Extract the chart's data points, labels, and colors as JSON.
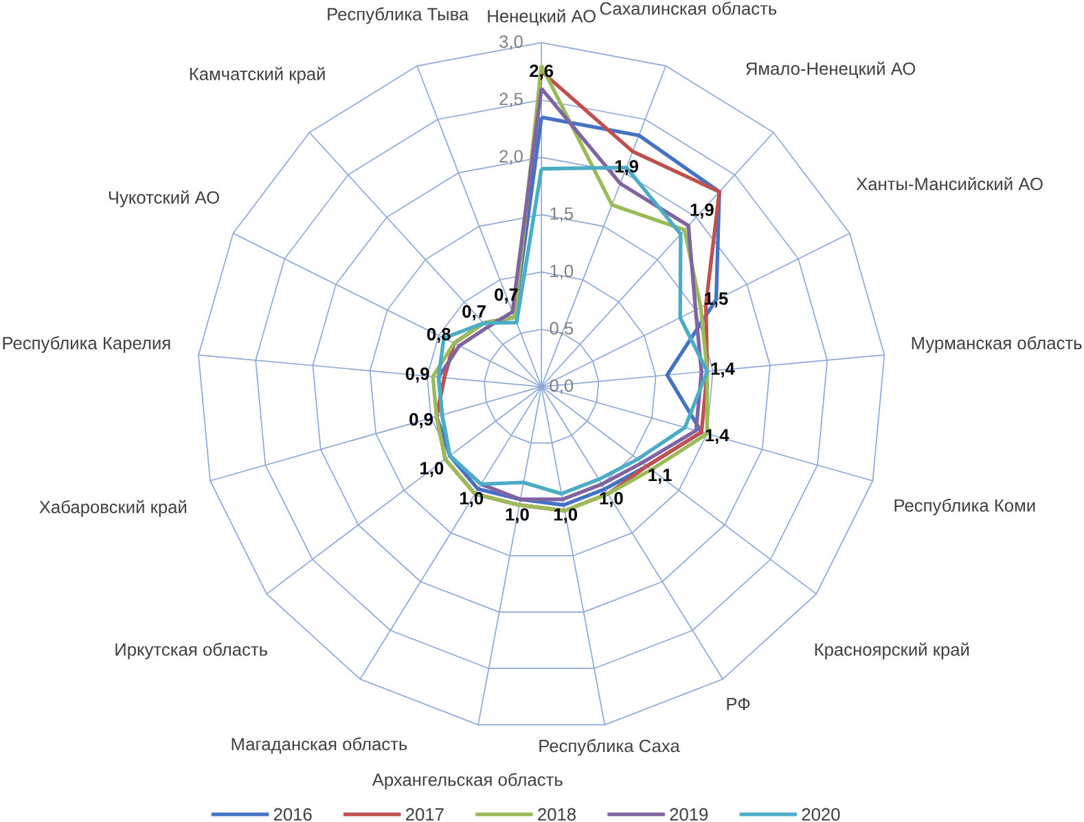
{
  "chart_data": {
    "type": "radar",
    "categories": [
      "Ненецкий АО",
      "Сахалинская область",
      "Ямало-Ненецкий АО",
      "Ханты-Мансийский АО",
      "Мурманская область",
      "Республика Коми",
      "Красноярский край",
      "РФ",
      "Республика Саха",
      "Архангельская область",
      "Магаданская область",
      "Иркутская область",
      "Хабаровский край",
      "Республика Карелия",
      "Чукотский АО",
      "Камчатский край",
      "Республика Тыва"
    ],
    "ylim": [
      0,
      3
    ],
    "yticks": [
      {
        "value": 0,
        "label": "0,0"
      },
      {
        "value": 0.5,
        "label": "0,5"
      },
      {
        "value": 1,
        "label": "1,0"
      },
      {
        "value": 1.5,
        "label": "1,5"
      },
      {
        "value": 2,
        "label": "2,0"
      },
      {
        "value": 2.5,
        "label": "2,5"
      },
      {
        "value": 3,
        "label": "3,0"
      }
    ],
    "grid": true,
    "legend": "bottom",
    "series": [
      {
        "name": "2016",
        "color": "#4472c4",
        "values": [
          2.35,
          2.35,
          2.3,
          1.7,
          1.1,
          1.45,
          1.15,
          1.05,
          1.05,
          1.0,
          1.05,
          1.0,
          0.95,
          0.85,
          0.85,
          0.75,
          0.65
        ]
      },
      {
        "name": "2017",
        "color": "#c0504d",
        "values": [
          2.75,
          2.2,
          2.3,
          1.6,
          1.45,
          1.45,
          1.15,
          1.1,
          1.1,
          1.05,
          1.1,
          1.05,
          0.95,
          0.85,
          0.85,
          0.75,
          0.65
        ]
      },
      {
        "name": "2018",
        "color": "#9bbb59",
        "values": [
          2.8,
          1.7,
          1.85,
          1.55,
          1.45,
          1.5,
          1.2,
          1.1,
          1.1,
          1.05,
          1.1,
          1.05,
          0.95,
          0.95,
          0.85,
          0.75,
          0.65
        ]
      },
      {
        "name": "2019",
        "color": "#8064a2",
        "values": [
          2.6,
          1.9,
          1.9,
          1.5,
          1.4,
          1.4,
          1.1,
          1.0,
          1.0,
          1.0,
          1.0,
          1.0,
          0.9,
          0.9,
          0.8,
          0.7,
          0.7
        ],
        "value_labels": [
          "2,6",
          "1,9",
          "1,9",
          "1,5",
          "1,4",
          "1,4",
          "1,1",
          "1,0",
          "1,0",
          "1,0",
          "1,0",
          "1,0",
          "0,9",
          "0,9",
          "0,8",
          "0,7",
          "0,7"
        ]
      },
      {
        "name": "2020",
        "color": "#4bacc6",
        "values": [
          1.9,
          2.05,
          1.8,
          1.35,
          1.45,
          1.3,
          1.05,
          0.95,
          0.95,
          0.85,
          1.0,
          1.0,
          0.9,
          0.9,
          0.95,
          0.75,
          0.6
        ]
      }
    ]
  }
}
